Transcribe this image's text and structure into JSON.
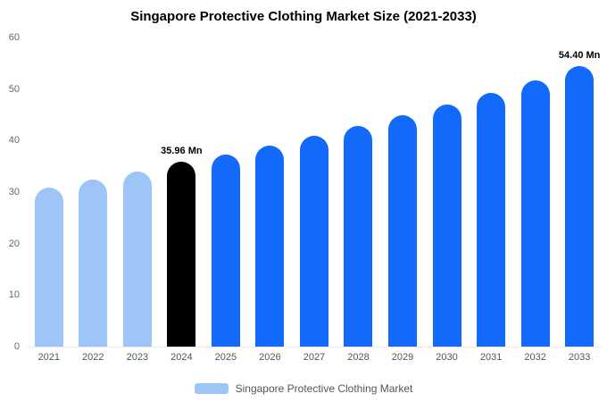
{
  "title": "Singapore Protective Clothing Market Size (2021-2033)",
  "legend": {
    "label": "Singapore Protective Clothing Market",
    "swatch_color": "#9ec5f8"
  },
  "colors": {
    "historical": "#9ec5f8",
    "base_year": "#000000",
    "forecast": "#1269fa",
    "axis_text": "#666666",
    "annotation_text": "#000000"
  },
  "chart_data": {
    "type": "bar",
    "title": "Singapore Protective Clothing Market Size (2021-2033)",
    "xlabel": "",
    "ylabel": "",
    "unit": "Mn",
    "categories": [
      "2021",
      "2022",
      "2023",
      "2024",
      "2025",
      "2026",
      "2027",
      "2028",
      "2029",
      "2030",
      "2031",
      "2032",
      "2033"
    ],
    "values": [
      30.8,
      32.4,
      34.0,
      35.96,
      37.3,
      39.0,
      40.9,
      42.9,
      45.0,
      47.0,
      49.3,
      51.6,
      54.4
    ],
    "bar_colors": [
      "#9ec5f8",
      "#9ec5f8",
      "#9ec5f8",
      "#000000",
      "#1269fa",
      "#1269fa",
      "#1269fa",
      "#1269fa",
      "#1269fa",
      "#1269fa",
      "#1269fa",
      "#1269fa",
      "#1269fa"
    ],
    "annotations": {
      "2024": "35.96 Mn",
      "2033": "54.40 Mn"
    },
    "ylim": [
      0,
      60
    ],
    "yticks": [
      0,
      10,
      20,
      30,
      40,
      50,
      60
    ],
    "grid": false,
    "legend_position": "bottom"
  }
}
